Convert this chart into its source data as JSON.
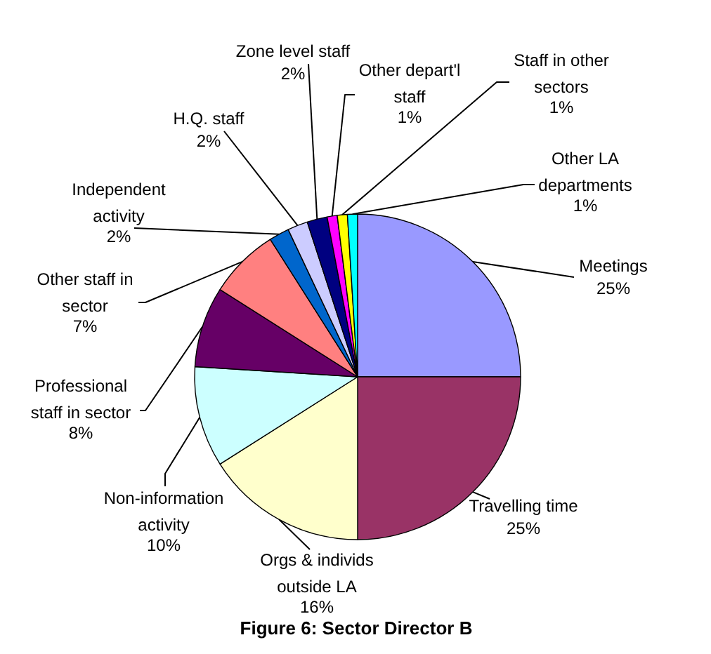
{
  "chart_data": {
    "type": "pie",
    "title": "Figure 6: Sector Director B",
    "categories": [
      "Meetings",
      "Travelling time",
      "Orgs & individs outside LA",
      "Non-information activity",
      "Professional staff in sector",
      "Other staff in sector",
      "Independent activity",
      "H.Q. staff",
      "Zone level staff",
      "Other depart'l staff",
      "Staff in other sectors",
      "Other LA departments"
    ],
    "values": [
      25,
      25,
      16,
      10,
      8,
      7,
      2,
      2,
      2,
      1,
      1,
      1
    ],
    "colors": [
      "#9999ff",
      "#993366",
      "#ffffcc",
      "#ccffff",
      "#660066",
      "#ff8080",
      "#0066cc",
      "#ccccff",
      "#000080",
      "#ff00ff",
      "#ffff00",
      "#00ffff"
    ],
    "value_labels": [
      "25%",
      "25%",
      "16%",
      "10%",
      "8%",
      "7%",
      "2%",
      "2%",
      "2%",
      "1%",
      "1%",
      "1%"
    ]
  }
}
